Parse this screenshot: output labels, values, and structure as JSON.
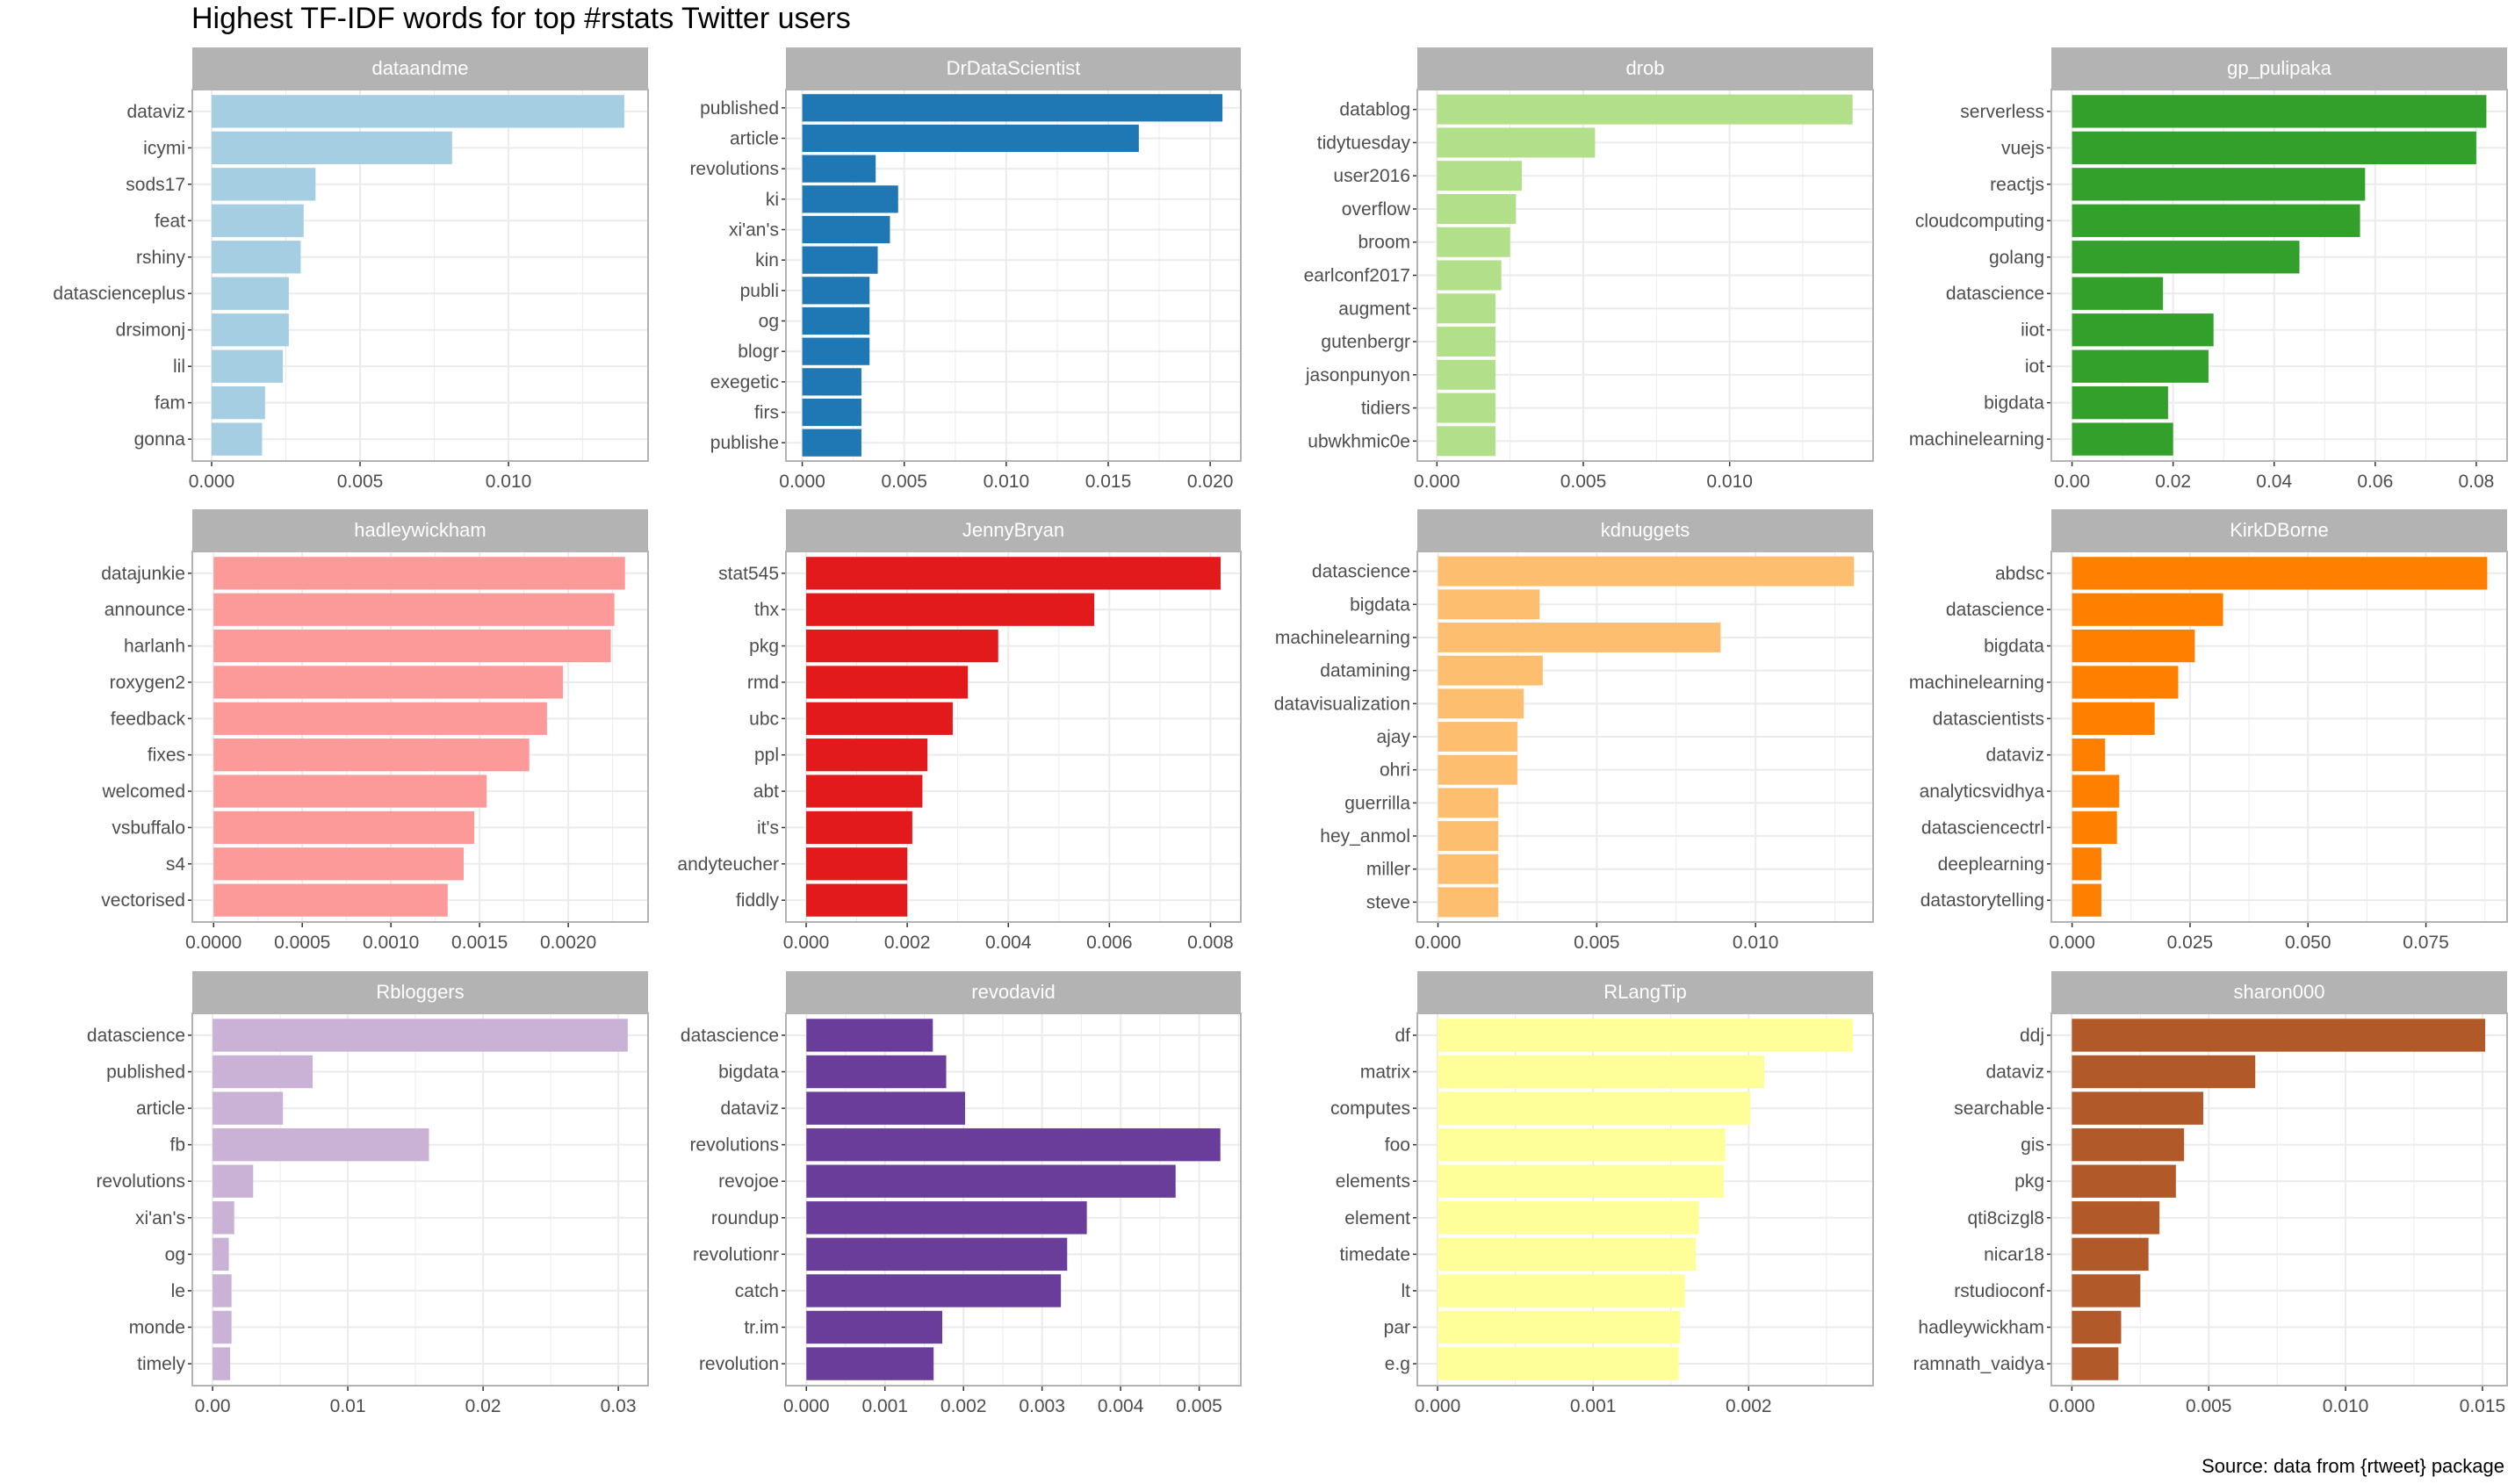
{
  "title": "Highest TF-IDF words for top #rstats Twitter users",
  "caption": "Source: data from {rtweet} package",
  "chart_data": [
    {
      "type": "bar",
      "orientation": "horizontal",
      "panel": "dataandme",
      "color": "#A6CEE3",
      "categories": [
        "dataviz",
        "icymi",
        "sods17",
        "feat",
        "rshiny",
        "datascienceplus",
        "drsimonj",
        "lil",
        "fam",
        "gonna"
      ],
      "values": [
        0.0139,
        0.0081,
        0.0035,
        0.0031,
        0.003,
        0.0026,
        0.0026,
        0.0024,
        0.0018,
        0.0017
      ],
      "xlim": [
        -0.00065,
        0.0147
      ],
      "xticks": [
        0.0,
        0.005,
        0.01
      ],
      "xtick_labels": [
        "0.000",
        "0.005",
        "0.010"
      ]
    },
    {
      "type": "bar",
      "orientation": "horizontal",
      "panel": "DrDataScientist",
      "color": "#1F78B4",
      "categories": [
        "published",
        "article",
        "revolutions",
        "ki",
        "xi'an's",
        "kin",
        "publi",
        "og",
        "blogr",
        "exegetic",
        "firs",
        "publishe"
      ],
      "values": [
        0.0206,
        0.0165,
        0.0036,
        0.0047,
        0.0043,
        0.0037,
        0.0033,
        0.0033,
        0.0033,
        0.0029,
        0.0029,
        0.0029
      ],
      "xlim": [
        -0.0008,
        0.0215
      ],
      "xticks": [
        0.0,
        0.005,
        0.01,
        0.015,
        0.02
      ],
      "xtick_labels": [
        "0.000",
        "0.005",
        "0.010",
        "0.015",
        "0.020"
      ]
    },
    {
      "type": "bar",
      "orientation": "horizontal",
      "panel": "drob",
      "color": "#B2DF8A",
      "categories": [
        "datablog",
        "tidytuesday",
        "user2016",
        "overflow",
        "broom",
        "earlconf2017",
        "augment",
        "gutenbergr",
        "jasonpunyon",
        "tidiers",
        "ubwkhmic0e"
      ],
      "values": [
        0.0142,
        0.0054,
        0.0029,
        0.0027,
        0.0025,
        0.0022,
        0.002,
        0.002,
        0.002,
        0.002,
        0.002
      ],
      "xlim": [
        -0.00067,
        0.0149
      ],
      "xticks": [
        0.0,
        0.005,
        0.01
      ],
      "xtick_labels": [
        "0.000",
        "0.005",
        "0.010"
      ]
    },
    {
      "type": "bar",
      "orientation": "horizontal",
      "panel": "gp_pulipaka",
      "color": "#33A02C",
      "categories": [
        "serverless",
        "vuejs",
        "reactjs",
        "cloudcomputing",
        "golang",
        "datascience",
        "iiot",
        "iot",
        "bigdata",
        "machinelearning"
      ],
      "values": [
        0.082,
        0.08,
        0.058,
        0.057,
        0.045,
        0.018,
        0.028,
        0.027,
        0.019,
        0.02
      ],
      "xlim": [
        -0.0041,
        0.0861
      ],
      "xticks": [
        0.0,
        0.02,
        0.04,
        0.06,
        0.08
      ],
      "xtick_labels": [
        "0.00",
        "0.02",
        "0.04",
        "0.06",
        "0.08"
      ]
    },
    {
      "type": "bar",
      "orientation": "horizontal",
      "panel": "hadleywickham",
      "color": "#FB9A99",
      "categories": [
        "datajunkie",
        "announce",
        "harlanh",
        "roxygen2",
        "feedback",
        "fixes",
        "welcomed",
        "vsbuffalo",
        "s4",
        "vectorised"
      ],
      "values": [
        0.00232,
        0.00226,
        0.00224,
        0.00197,
        0.00188,
        0.00178,
        0.00154,
        0.00147,
        0.00141,
        0.00132
      ],
      "xlim": [
        -0.00012,
        0.00245
      ],
      "xticks": [
        0.0,
        0.0005,
        0.001,
        0.0015,
        0.002
      ],
      "xtick_labels": [
        "0.0000",
        "0.0005",
        "0.0010",
        "0.0015",
        "0.0020"
      ]
    },
    {
      "type": "bar",
      "orientation": "horizontal",
      "panel": "JennyBryan",
      "color": "#E31A1C",
      "categories": [
        "stat545",
        "thx",
        "pkg",
        "rmd",
        "ubc",
        "ppl",
        "abt",
        "it's",
        "andyteucher",
        "fiddly"
      ],
      "values": [
        0.0082,
        0.0057,
        0.0038,
        0.0032,
        0.0029,
        0.0024,
        0.0023,
        0.0021,
        0.002,
        0.002
      ],
      "xlim": [
        -0.0004,
        0.0086
      ],
      "xticks": [
        0.0,
        0.002,
        0.004,
        0.006,
        0.008
      ],
      "xtick_labels": [
        "0.000",
        "0.002",
        "0.004",
        "0.006",
        "0.008"
      ]
    },
    {
      "type": "bar",
      "orientation": "horizontal",
      "panel": "kdnuggets",
      "color": "#FDBF6F",
      "categories": [
        "datascience",
        "bigdata",
        "machinelearning",
        "datamining",
        "datavisualization",
        "ajay",
        "ohri",
        "guerrilla",
        "hey_anmol",
        "miller",
        "steve"
      ],
      "values": [
        0.0131,
        0.0032,
        0.0089,
        0.0033,
        0.0027,
        0.0025,
        0.0025,
        0.0019,
        0.0019,
        0.0019,
        0.0019
      ],
      "xlim": [
        -0.00065,
        0.0137
      ],
      "xticks": [
        0.0,
        0.005,
        0.01
      ],
      "xtick_labels": [
        "0.000",
        "0.005",
        "0.010"
      ]
    },
    {
      "type": "bar",
      "orientation": "horizontal",
      "panel": "KirkDBorne",
      "color": "#FF7F00",
      "categories": [
        "abdsc",
        "datascience",
        "bigdata",
        "machinelearning",
        "datascientists",
        "dataviz",
        "analyticsvidhya",
        "datasciencectrl",
        "deeplearning",
        "datastorytelling"
      ],
      "values": [
        0.088,
        0.032,
        0.026,
        0.0225,
        0.0175,
        0.007,
        0.01,
        0.0095,
        0.0062,
        0.0062
      ],
      "xlim": [
        -0.0044,
        0.0922
      ],
      "xticks": [
        0.0,
        0.025,
        0.05,
        0.075
      ],
      "xtick_labels": [
        "0.000",
        "0.025",
        "0.050",
        "0.075"
      ]
    },
    {
      "type": "bar",
      "orientation": "horizontal",
      "panel": "Rbloggers",
      "color": "#CAB2D6",
      "categories": [
        "datascience",
        "published",
        "article",
        "fb",
        "revolutions",
        "xi'an's",
        "og",
        "le",
        "monde",
        "timely"
      ],
      "values": [
        0.0307,
        0.0074,
        0.0052,
        0.016,
        0.003,
        0.0016,
        0.0012,
        0.0014,
        0.0014,
        0.0013
      ],
      "xlim": [
        -0.0015,
        0.0322
      ],
      "xticks": [
        0.0,
        0.01,
        0.02,
        0.03
      ],
      "xtick_labels": [
        "0.00",
        "0.01",
        "0.02",
        "0.03"
      ]
    },
    {
      "type": "bar",
      "orientation": "horizontal",
      "panel": "revodavid",
      "color": "#6A3D9A",
      "categories": [
        "datascience",
        "bigdata",
        "dataviz",
        "revolutions",
        "revojoe",
        "roundup",
        "revolutionr",
        "catch",
        "tr.im",
        "revolution"
      ],
      "values": [
        0.00161,
        0.00178,
        0.00202,
        0.00527,
        0.0047,
        0.00357,
        0.00332,
        0.00324,
        0.00173,
        0.00162
      ],
      "xlim": [
        -0.00026,
        0.00553
      ],
      "xticks": [
        0.0,
        0.001,
        0.002,
        0.003,
        0.004,
        0.005
      ],
      "xtick_labels": [
        "0.000",
        "0.001",
        "0.002",
        "0.003",
        "0.004",
        "0.005"
      ]
    },
    {
      "type": "bar",
      "orientation": "horizontal",
      "panel": "RLangTip",
      "color": "#FFFF99",
      "categories": [
        "df",
        "matrix",
        "computes",
        "foo",
        "elements",
        "element",
        "timedate",
        "lt",
        "par",
        "e.g"
      ],
      "values": [
        0.00267,
        0.0021,
        0.00201,
        0.00185,
        0.00184,
        0.00168,
        0.00166,
        0.00159,
        0.00156,
        0.00155
      ],
      "xlim": [
        -0.00013,
        0.0028
      ],
      "xticks": [
        0.0,
        0.001,
        0.002
      ],
      "xtick_labels": [
        "0.000",
        "0.001",
        "0.002"
      ]
    },
    {
      "type": "bar",
      "orientation": "horizontal",
      "panel": "sharon000",
      "color": "#B15928",
      "categories": [
        "ddj",
        "dataviz",
        "searchable",
        "gis",
        "pkg",
        "qti8cizgl8",
        "nicar18",
        "rstudioconf",
        "hadleywickham",
        "ramnath_vaidya"
      ],
      "values": [
        0.0151,
        0.0067,
        0.0048,
        0.0041,
        0.0038,
        0.0032,
        0.0028,
        0.0025,
        0.0018,
        0.0017
      ],
      "xlim": [
        -0.00075,
        0.0159
      ],
      "xticks": [
        0.0,
        0.005,
        0.01,
        0.015
      ],
      "xtick_labels": [
        "0.000",
        "0.005",
        "0.010",
        "0.015"
      ]
    }
  ]
}
